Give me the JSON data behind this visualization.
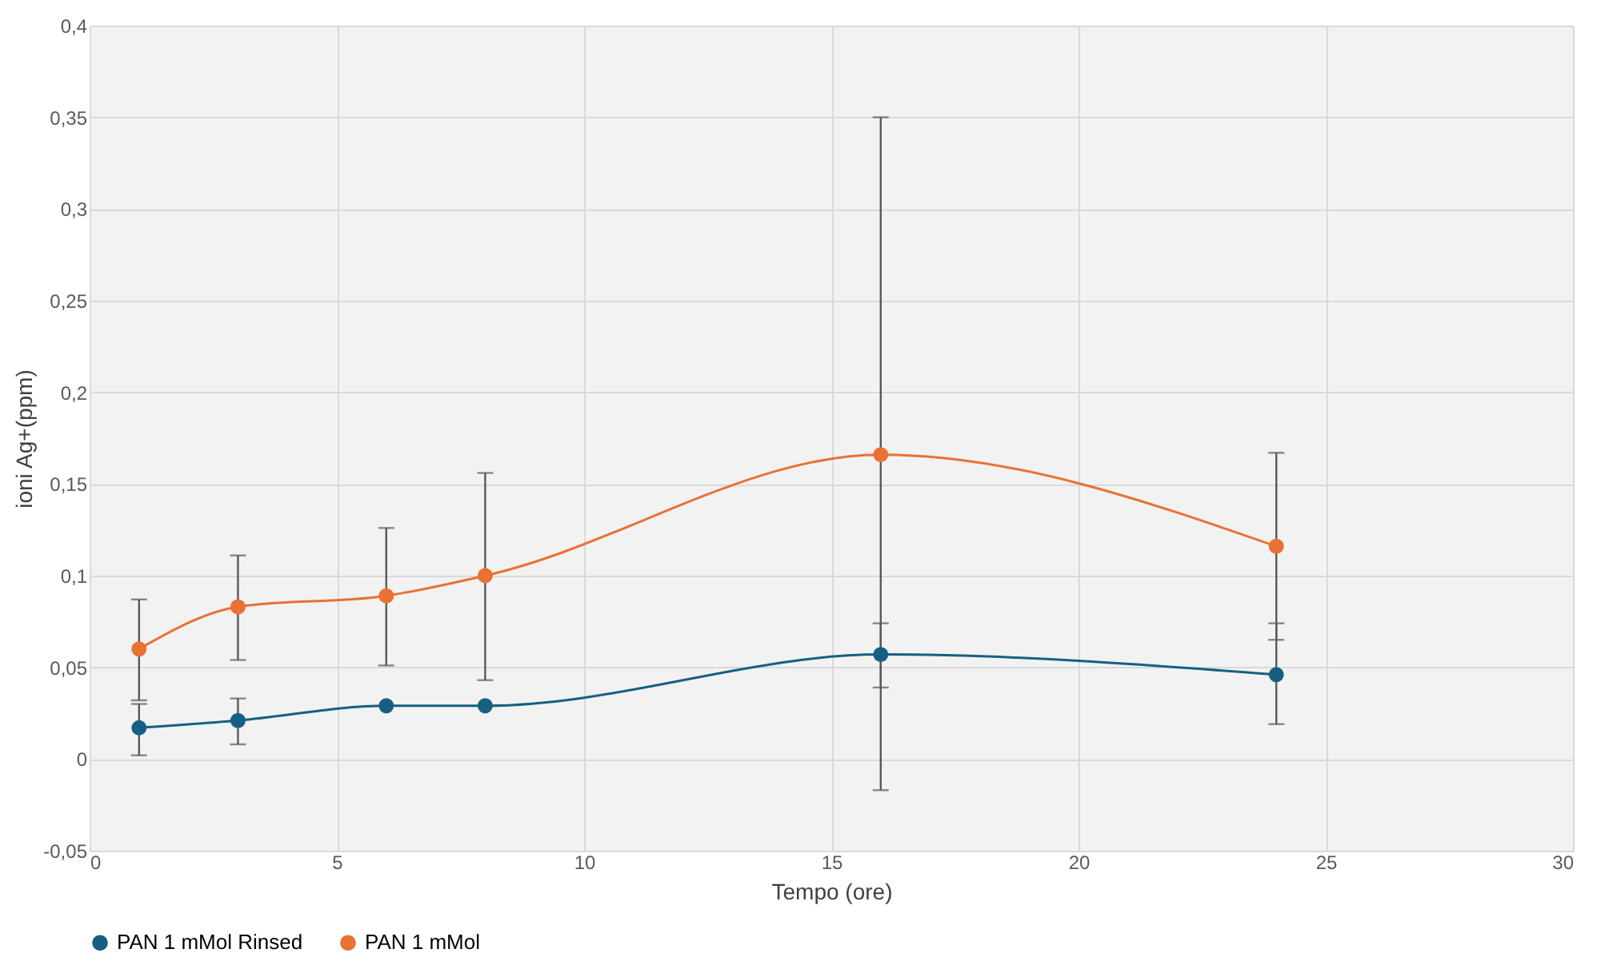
{
  "chart_data": {
    "type": "line",
    "xlabel": "Tempo (ore)",
    "ylabel": "ioni Ag+(ppm)",
    "x": [
      1,
      3,
      6,
      8,
      16,
      24
    ],
    "series": [
      {
        "name": "PAN 1 mMol Rinsed",
        "color": "#156082",
        "values": [
          0.017,
          0.021,
          0.029,
          0.029,
          0.057,
          0.046
        ],
        "errors": [
          [
            0.002,
            0.03
          ],
          [
            0.008,
            0.033
          ],
          null,
          null,
          [
            -0.017,
            0.074
          ],
          [
            0.019,
            0.074
          ]
        ]
      },
      {
        "name": "PAN 1 mMol",
        "color": "#e97132",
        "values": [
          0.06,
          0.083,
          0.089,
          0.1,
          0.166,
          0.116
        ],
        "errors": [
          [
            0.032,
            0.087
          ],
          [
            0.054,
            0.111
          ],
          [
            0.051,
            0.126
          ],
          [
            0.043,
            0.156
          ],
          [
            0.039,
            0.35
          ],
          [
            0.065,
            0.167
          ]
        ]
      }
    ],
    "xlim": [
      0,
      30
    ],
    "xticks": [
      0,
      5,
      10,
      15,
      20,
      25,
      30
    ],
    "ylim": [
      -0.05,
      0.4
    ],
    "yticks": [
      {
        "value": -0.05,
        "label": "-0,05"
      },
      0,
      {
        "value": 0.05,
        "label": "0,05"
      },
      {
        "value": 0.1,
        "label": "0,1"
      },
      {
        "value": 0.15,
        "label": "0,15"
      },
      {
        "value": 0.2,
        "label": "0,2"
      },
      {
        "value": 0.25,
        "label": "0,25"
      },
      {
        "value": 0.3,
        "label": "0,3"
      },
      {
        "value": 0.35,
        "label": "0,35"
      },
      {
        "value": 0.4,
        "label": "0,4"
      }
    ],
    "grid": true,
    "legend": "bottom",
    "marker": "circle",
    "line_style": "solid"
  }
}
